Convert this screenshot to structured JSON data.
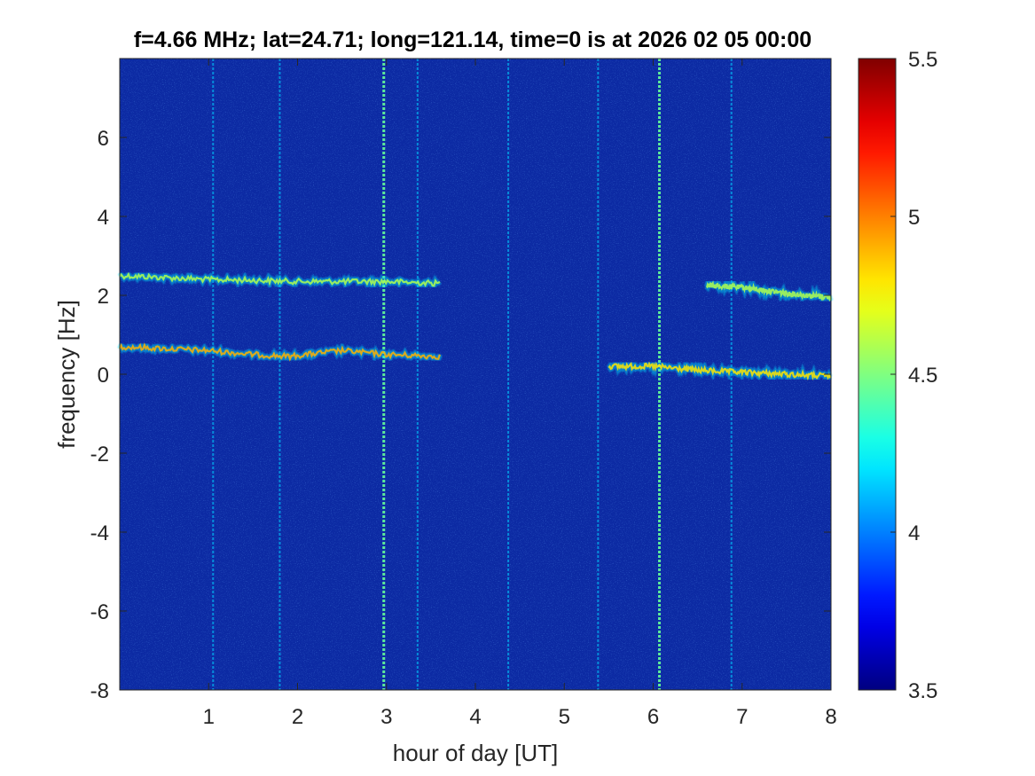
{
  "chart_data": {
    "type": "heatmap",
    "title": "f=4.66 MHz;  lat=24.71; long=121.14, time=0 is at 2026 02 05 00:00",
    "xlabel": "hour of day [UT]",
    "ylabel": "frequency [Hz]",
    "xlim": [
      0,
      8
    ],
    "ylim": [
      -8,
      8
    ],
    "xticks": [
      1,
      2,
      3,
      4,
      5,
      6,
      7,
      8
    ],
    "xtick_labels": [
      "1",
      "2",
      "3",
      "4",
      "5",
      "6",
      "7",
      "8"
    ],
    "yticks": [
      -8,
      -6,
      -4,
      -2,
      0,
      2,
      4,
      6
    ],
    "ytick_labels": [
      "-8",
      "-6",
      "-4",
      "-2",
      "0",
      "2",
      "4",
      "6"
    ],
    "colormap": "jet",
    "clim": [
      3.5,
      5.5
    ],
    "colorbar_ticks": [
      3.5,
      4,
      4.5,
      5,
      5.5
    ],
    "colorbar_tick_labels": [
      "3.5",
      "4",
      "4.5",
      "5",
      "5.5"
    ],
    "background_level": 3.75,
    "traces": [
      {
        "hours": [
          0,
          0.5,
          1,
          1.5,
          2,
          2.5,
          3,
          3.6
        ],
        "freq_hz": [
          2.5,
          2.45,
          2.4,
          2.38,
          2.35,
          2.35,
          2.35,
          2.3
        ],
        "level": 4.6
      },
      {
        "hours": [
          0,
          0.5,
          1,
          1.5,
          1.9,
          2.5,
          3,
          3.6
        ],
        "freq_hz": [
          0.7,
          0.65,
          0.6,
          0.5,
          0.45,
          0.6,
          0.5,
          0.45
        ],
        "level": 4.9
      },
      {
        "hours": [
          6.6,
          7,
          7.5,
          8
        ],
        "freq_hz": [
          2.25,
          2.2,
          2.05,
          1.95
        ],
        "level": 4.6
      },
      {
        "hours": [
          5.5,
          6,
          6.5,
          7,
          7.5,
          8
        ],
        "freq_hz": [
          0.2,
          0.2,
          0.1,
          0.05,
          0,
          -0.05
        ],
        "level": 4.8
      }
    ],
    "vertical_streaks_hours": [
      1.05,
      1.8,
      2.97,
      3.35,
      4.37,
      5.38,
      6.07,
      6.88
    ],
    "grid": false,
    "legend": "none"
  }
}
